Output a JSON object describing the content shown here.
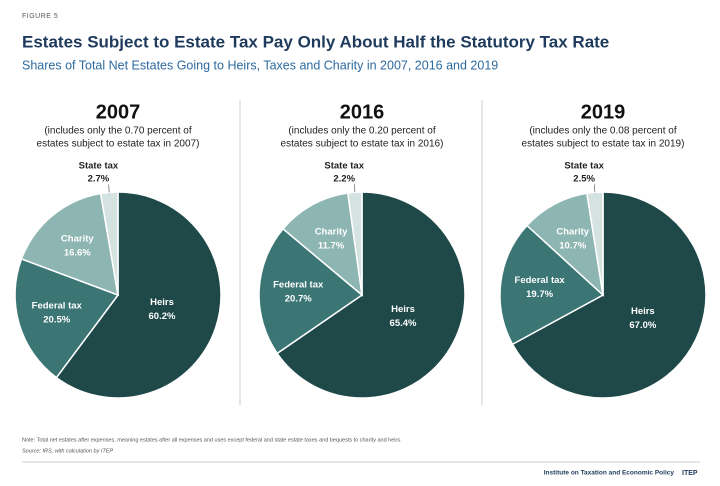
{
  "header": {
    "figure": "FIGURE 5",
    "title": "Estates Subject to Estate Tax Pay Only About Half the Statutory Tax Rate",
    "subtitle": "Shares of Total Net Estates Going to Heirs, Taxes and Charity in 2007, 2016 and 2019"
  },
  "chart_data": [
    {
      "type": "pie",
      "title": "2007",
      "subtitle": [
        "(includes only the 0.70 percent of",
        "estates subject to estate tax in 2007)"
      ],
      "categories": [
        "Heirs",
        "Federal tax",
        "Charity",
        "State tax"
      ],
      "values": [
        60.2,
        20.5,
        16.6,
        2.7
      ],
      "value_labels": [
        "60.2%",
        "20.5%",
        "16.6%",
        "2.7%"
      ],
      "colors": [
        "#1f4848",
        "#3b7574",
        "#8db5b1",
        "#d4e2e0"
      ]
    },
    {
      "type": "pie",
      "title": "2016",
      "subtitle": [
        "(includes only the 0.20 percent of",
        "estates subject to estate tax in 2016)"
      ],
      "categories": [
        "Heirs",
        "Federal tax",
        "Charity",
        "State tax"
      ],
      "values": [
        65.4,
        20.7,
        11.7,
        2.2
      ],
      "value_labels": [
        "65.4%",
        "20.7%",
        "11.7%",
        "2.2%"
      ],
      "colors": [
        "#1f4848",
        "#3b7574",
        "#8db5b1",
        "#d4e2e0"
      ]
    },
    {
      "type": "pie",
      "title": "2019",
      "subtitle": [
        "(includes only the 0.08 percent of",
        "estates subject to estate tax in 2019)"
      ],
      "categories": [
        "Heirs",
        "Federal tax",
        "Charity",
        "State tax"
      ],
      "values": [
        67.0,
        19.7,
        10.7,
        2.5
      ],
      "value_labels": [
        "67.0%",
        "19.7%",
        "10.7%",
        "2.5%"
      ],
      "colors": [
        "#1f4848",
        "#3b7574",
        "#8db5b1",
        "#d4e2e0"
      ]
    }
  ],
  "footer": {
    "note": "Note: Total net estates after expenses, meaning estates after all expenses and uses except federal and state estate taxes and bequests to charity and heirs.",
    "source": "Source: IRS, with calculation by ITEP",
    "credit": "Institute on Taxation and Economic Policy",
    "logo": "ITEP"
  }
}
